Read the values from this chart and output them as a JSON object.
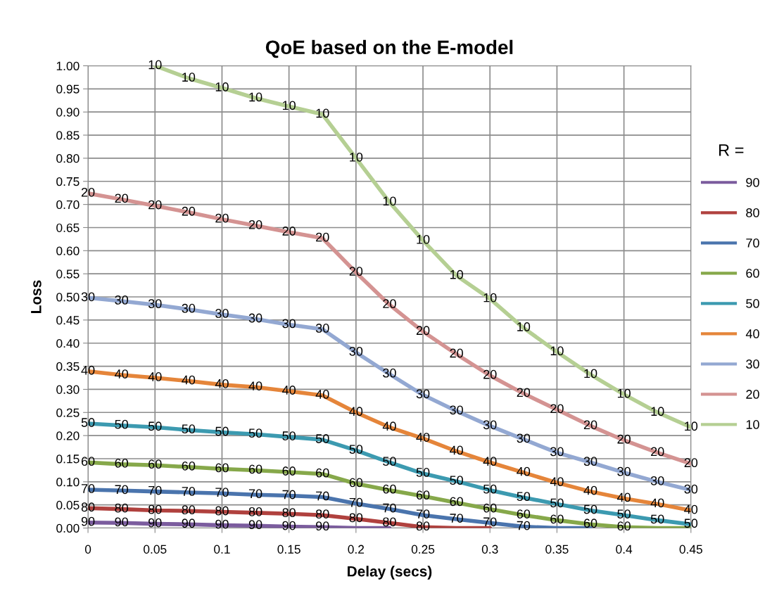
{
  "chart_data": {
    "type": "line",
    "title": "QoE based on the E-model",
    "xlabel": "Delay (secs)",
    "ylabel": "Loss",
    "legend_title": "R =",
    "x": [
      0,
      0.025,
      0.05,
      0.075,
      0.1,
      0.125,
      0.15,
      0.175,
      0.2,
      0.225,
      0.25,
      0.275,
      0.3,
      0.325,
      0.35,
      0.375,
      0.4,
      0.425,
      0.45
    ],
    "xlim": [
      0,
      0.45
    ],
    "xticks": [
      0,
      0.05,
      0.1,
      0.15,
      0.2,
      0.25,
      0.3,
      0.35,
      0.4,
      0.45
    ],
    "ylim": [
      0,
      1.0
    ],
    "yticks": [
      {
        "value": 0,
        "label": "0.00"
      },
      {
        "value": 0.05,
        "label": "0.05"
      },
      {
        "value": 0.1,
        "label": "0.10"
      },
      {
        "value": 0.15,
        "label": "0.15"
      },
      {
        "value": 0.2,
        "label": "0.20"
      },
      {
        "value": 0.25,
        "label": "0.25"
      },
      {
        "value": 0.3,
        "label": "0.30"
      },
      {
        "value": 0.35,
        "label": "0.35"
      },
      {
        "value": 0.4,
        "label": "0.40"
      },
      {
        "value": 0.45,
        "label": "0.45"
      },
      {
        "value": 0.5,
        "label": "0.50"
      },
      {
        "value": 0.55,
        "label": "0.55"
      },
      {
        "value": 0.6,
        "label": "0.60"
      },
      {
        "value": 0.65,
        "label": "0.65"
      },
      {
        "value": 0.7,
        "label": "0.70"
      },
      {
        "value": 0.75,
        "label": "0.75"
      },
      {
        "value": 0.8,
        "label": "0.80"
      },
      {
        "value": 0.85,
        "label": "0.85"
      },
      {
        "value": 0.9,
        "label": "0.90"
      },
      {
        "value": 0.95,
        "label": "0.95"
      },
      {
        "value": 1.0,
        "label": "1.00"
      }
    ],
    "grid": true,
    "legend": "right",
    "marker": "none",
    "line_style": "solid",
    "series": [
      {
        "name": "90",
        "color": "#7b5c9e",
        "values": [
          0.012,
          0.011,
          0.009,
          0.008,
          0.006,
          0.005,
          0.003,
          0.002,
          0,
          0,
          null,
          null,
          null,
          null,
          null,
          null,
          null,
          null,
          null
        ]
      },
      {
        "name": "80",
        "color": "#b0413e",
        "values": [
          0.043,
          0.041,
          0.038,
          0.037,
          0.035,
          0.033,
          0.031,
          0.028,
          0.02,
          0.011,
          0.002,
          0,
          0,
          null,
          null,
          null,
          null,
          null,
          null
        ]
      },
      {
        "name": "70",
        "color": "#4a74ad",
        "values": [
          0.083,
          0.081,
          0.079,
          0.077,
          0.075,
          0.072,
          0.07,
          0.067,
          0.053,
          0.041,
          0.028,
          0.019,
          0.011,
          0.003,
          0,
          0,
          null,
          null,
          null
        ]
      },
      {
        "name": "60",
        "color": "#86a84a",
        "values": [
          0.142,
          0.138,
          0.136,
          0.132,
          0.128,
          0.125,
          0.121,
          0.117,
          0.096,
          0.082,
          0.069,
          0.055,
          0.041,
          0.028,
          0.017,
          0.008,
          0.002,
          0,
          0
        ]
      },
      {
        "name": "50",
        "color": "#3c9ab0",
        "values": [
          0.226,
          0.222,
          0.218,
          0.212,
          0.207,
          0.203,
          0.197,
          0.191,
          0.168,
          0.142,
          0.118,
          0.101,
          0.082,
          0.066,
          0.052,
          0.038,
          0.028,
          0.017,
          0.008
        ]
      },
      {
        "name": "40",
        "color": "#e5853a",
        "values": [
          0.339,
          0.331,
          0.325,
          0.318,
          0.31,
          0.305,
          0.296,
          0.287,
          0.25,
          0.218,
          0.194,
          0.166,
          0.142,
          0.12,
          0.098,
          0.079,
          0.064,
          0.052,
          0.038
        ]
      },
      {
        "name": "30",
        "color": "#93a8d2",
        "values": [
          0.498,
          0.491,
          0.483,
          0.473,
          0.462,
          0.452,
          0.44,
          0.43,
          0.38,
          0.333,
          0.288,
          0.253,
          0.221,
          0.192,
          0.163,
          0.142,
          0.12,
          0.1,
          0.082
        ]
      },
      {
        "name": "20",
        "color": "#d49392",
        "values": [
          0.724,
          0.711,
          0.697,
          0.683,
          0.668,
          0.654,
          0.64,
          0.627,
          0.553,
          0.483,
          0.425,
          0.376,
          0.33,
          0.291,
          0.256,
          0.221,
          0.19,
          0.163,
          0.139
        ]
      },
      {
        "name": "10",
        "color": "#b5cf93",
        "values": [
          null,
          null,
          1.0,
          0.973,
          0.952,
          0.93,
          0.912,
          0.895,
          0.8,
          0.705,
          0.622,
          0.546,
          0.496,
          0.433,
          0.381,
          0.332,
          0.289,
          0.25,
          0.218
        ]
      }
    ],
    "annotations": [
      {
        "text": "90",
        "x": 0,
        "y": 0.012
      },
      {
        "text": "90",
        "x": 0.025,
        "y": 0.011
      },
      {
        "text": "90",
        "x": 0.05,
        "y": 0.009
      },
      {
        "text": "90",
        "x": 0.075,
        "y": 0.008
      },
      {
        "text": "90",
        "x": 0.1,
        "y": 0.006
      },
      {
        "text": "90",
        "x": 0.125,
        "y": 0.005
      },
      {
        "text": "90",
        "x": 0.15,
        "y": 0.003
      },
      {
        "text": "90",
        "x": 0.175,
        "y": 0.002
      },
      {
        "text": "80",
        "x": 0,
        "y": 0.043
      },
      {
        "text": "80",
        "x": 0.025,
        "y": 0.041
      },
      {
        "text": "80",
        "x": 0.05,
        "y": 0.038
      },
      {
        "text": "80",
        "x": 0.075,
        "y": 0.037
      },
      {
        "text": "80",
        "x": 0.1,
        "y": 0.035
      },
      {
        "text": "80",
        "x": 0.125,
        "y": 0.033
      },
      {
        "text": "80",
        "x": 0.15,
        "y": 0.031
      },
      {
        "text": "80",
        "x": 0.175,
        "y": 0.028
      },
      {
        "text": "80",
        "x": 0.2,
        "y": 0.02
      },
      {
        "text": "80",
        "x": 0.225,
        "y": 0.011
      },
      {
        "text": "80",
        "x": 0.25,
        "y": 0.002
      },
      {
        "text": "70",
        "x": 0,
        "y": 0.083
      },
      {
        "text": "70",
        "x": 0.025,
        "y": 0.081
      },
      {
        "text": "70",
        "x": 0.05,
        "y": 0.079
      },
      {
        "text": "70",
        "x": 0.075,
        "y": 0.077
      },
      {
        "text": "70",
        "x": 0.1,
        "y": 0.075
      },
      {
        "text": "70",
        "x": 0.125,
        "y": 0.072
      },
      {
        "text": "70",
        "x": 0.15,
        "y": 0.07
      },
      {
        "text": "70",
        "x": 0.175,
        "y": 0.067
      },
      {
        "text": "70",
        "x": 0.2,
        "y": 0.053
      },
      {
        "text": "70",
        "x": 0.225,
        "y": 0.041
      },
      {
        "text": "70",
        "x": 0.25,
        "y": 0.028
      },
      {
        "text": "70",
        "x": 0.275,
        "y": 0.019
      },
      {
        "text": "70",
        "x": 0.3,
        "y": 0.011
      },
      {
        "text": "70",
        "x": 0.325,
        "y": 0.003
      },
      {
        "text": "60",
        "x": 0,
        "y": 0.142
      },
      {
        "text": "60",
        "x": 0.025,
        "y": 0.138
      },
      {
        "text": "60",
        "x": 0.05,
        "y": 0.136
      },
      {
        "text": "60",
        "x": 0.075,
        "y": 0.132
      },
      {
        "text": "60",
        "x": 0.1,
        "y": 0.128
      },
      {
        "text": "60",
        "x": 0.125,
        "y": 0.125
      },
      {
        "text": "60",
        "x": 0.15,
        "y": 0.121
      },
      {
        "text": "60",
        "x": 0.175,
        "y": 0.117
      },
      {
        "text": "60",
        "x": 0.2,
        "y": 0.096
      },
      {
        "text": "60",
        "x": 0.225,
        "y": 0.082
      },
      {
        "text": "60",
        "x": 0.25,
        "y": 0.069
      },
      {
        "text": "60",
        "x": 0.275,
        "y": 0.055
      },
      {
        "text": "60",
        "x": 0.3,
        "y": 0.041
      },
      {
        "text": "60",
        "x": 0.325,
        "y": 0.028
      },
      {
        "text": "60",
        "x": 0.35,
        "y": 0.017
      },
      {
        "text": "60",
        "x": 0.375,
        "y": 0.008
      },
      {
        "text": "60",
        "x": 0.4,
        "y": 0.002
      },
      {
        "text": "50",
        "x": 0,
        "y": 0.226
      },
      {
        "text": "50",
        "x": 0.025,
        "y": 0.222
      },
      {
        "text": "50",
        "x": 0.05,
        "y": 0.218
      },
      {
        "text": "50",
        "x": 0.075,
        "y": 0.212
      },
      {
        "text": "50",
        "x": 0.1,
        "y": 0.207
      },
      {
        "text": "50",
        "x": 0.125,
        "y": 0.203
      },
      {
        "text": "50",
        "x": 0.15,
        "y": 0.197
      },
      {
        "text": "50",
        "x": 0.175,
        "y": 0.191
      },
      {
        "text": "50",
        "x": 0.2,
        "y": 0.168
      },
      {
        "text": "50",
        "x": 0.225,
        "y": 0.142
      },
      {
        "text": "50",
        "x": 0.25,
        "y": 0.118
      },
      {
        "text": "50",
        "x": 0.275,
        "y": 0.101
      },
      {
        "text": "50",
        "x": 0.3,
        "y": 0.082
      },
      {
        "text": "50",
        "x": 0.325,
        "y": 0.066
      },
      {
        "text": "50",
        "x": 0.35,
        "y": 0.052
      },
      {
        "text": "50",
        "x": 0.375,
        "y": 0.038
      },
      {
        "text": "50",
        "x": 0.4,
        "y": 0.028
      },
      {
        "text": "50",
        "x": 0.425,
        "y": 0.017
      },
      {
        "text": "50",
        "x": 0.45,
        "y": 0.008
      },
      {
        "text": "40",
        "x": 0,
        "y": 0.339
      },
      {
        "text": "40",
        "x": 0.025,
        "y": 0.331
      },
      {
        "text": "40",
        "x": 0.05,
        "y": 0.325
      },
      {
        "text": "40",
        "x": 0.075,
        "y": 0.318
      },
      {
        "text": "40",
        "x": 0.1,
        "y": 0.31
      },
      {
        "text": "40",
        "x": 0.125,
        "y": 0.305
      },
      {
        "text": "40",
        "x": 0.15,
        "y": 0.296
      },
      {
        "text": "40",
        "x": 0.175,
        "y": 0.287
      },
      {
        "text": "40",
        "x": 0.2,
        "y": 0.25
      },
      {
        "text": "40",
        "x": 0.225,
        "y": 0.218
      },
      {
        "text": "40",
        "x": 0.25,
        "y": 0.194
      },
      {
        "text": "40",
        "x": 0.275,
        "y": 0.166
      },
      {
        "text": "40",
        "x": 0.3,
        "y": 0.142
      },
      {
        "text": "40",
        "x": 0.325,
        "y": 0.12
      },
      {
        "text": "40",
        "x": 0.35,
        "y": 0.098
      },
      {
        "text": "40",
        "x": 0.375,
        "y": 0.079
      },
      {
        "text": "40",
        "x": 0.4,
        "y": 0.064
      },
      {
        "text": "40",
        "x": 0.425,
        "y": 0.052
      },
      {
        "text": "40",
        "x": 0.45,
        "y": 0.038
      },
      {
        "text": "30",
        "x": 0,
        "y": 0.498
      },
      {
        "text": "30",
        "x": 0.025,
        "y": 0.491
      },
      {
        "text": "30",
        "x": 0.05,
        "y": 0.483
      },
      {
        "text": "30",
        "x": 0.075,
        "y": 0.473
      },
      {
        "text": "30",
        "x": 0.1,
        "y": 0.462
      },
      {
        "text": "30",
        "x": 0.125,
        "y": 0.452
      },
      {
        "text": "30",
        "x": 0.15,
        "y": 0.44
      },
      {
        "text": "30",
        "x": 0.175,
        "y": 0.43
      },
      {
        "text": "30",
        "x": 0.2,
        "y": 0.38
      },
      {
        "text": "30",
        "x": 0.225,
        "y": 0.333
      },
      {
        "text": "30",
        "x": 0.25,
        "y": 0.288
      },
      {
        "text": "30",
        "x": 0.275,
        "y": 0.253
      },
      {
        "text": "30",
        "x": 0.3,
        "y": 0.221
      },
      {
        "text": "30",
        "x": 0.325,
        "y": 0.192
      },
      {
        "text": "30",
        "x": 0.35,
        "y": 0.163
      },
      {
        "text": "30",
        "x": 0.375,
        "y": 0.142
      },
      {
        "text": "30",
        "x": 0.4,
        "y": 0.12
      },
      {
        "text": "30",
        "x": 0.425,
        "y": 0.1
      },
      {
        "text": "30",
        "x": 0.45,
        "y": 0.082
      },
      {
        "text": "20",
        "x": 0,
        "y": 0.724
      },
      {
        "text": "20",
        "x": 0.025,
        "y": 0.711
      },
      {
        "text": "20",
        "x": 0.05,
        "y": 0.697
      },
      {
        "text": "20",
        "x": 0.075,
        "y": 0.683
      },
      {
        "text": "20",
        "x": 0.1,
        "y": 0.668
      },
      {
        "text": "20",
        "x": 0.125,
        "y": 0.654
      },
      {
        "text": "20",
        "x": 0.15,
        "y": 0.64
      },
      {
        "text": "20",
        "x": 0.175,
        "y": 0.627
      },
      {
        "text": "20",
        "x": 0.2,
        "y": 0.553
      },
      {
        "text": "20",
        "x": 0.225,
        "y": 0.483
      },
      {
        "text": "20",
        "x": 0.25,
        "y": 0.425
      },
      {
        "text": "20",
        "x": 0.275,
        "y": 0.376
      },
      {
        "text": "20",
        "x": 0.3,
        "y": 0.33
      },
      {
        "text": "20",
        "x": 0.325,
        "y": 0.291
      },
      {
        "text": "20",
        "x": 0.35,
        "y": 0.256
      },
      {
        "text": "20",
        "x": 0.375,
        "y": 0.221
      },
      {
        "text": "20",
        "x": 0.4,
        "y": 0.19
      },
      {
        "text": "20",
        "x": 0.425,
        "y": 0.163
      },
      {
        "text": "20",
        "x": 0.45,
        "y": 0.139
      },
      {
        "text": "10",
        "x": 0.05,
        "y": 1.0
      },
      {
        "text": "10",
        "x": 0.075,
        "y": 0.973
      },
      {
        "text": "10",
        "x": 0.1,
        "y": 0.952
      },
      {
        "text": "10",
        "x": 0.125,
        "y": 0.93
      },
      {
        "text": "10",
        "x": 0.15,
        "y": 0.912
      },
      {
        "text": "10",
        "x": 0.175,
        "y": 0.895
      },
      {
        "text": "10",
        "x": 0.2,
        "y": 0.8
      },
      {
        "text": "10",
        "x": 0.225,
        "y": 0.705
      },
      {
        "text": "10",
        "x": 0.25,
        "y": 0.622
      },
      {
        "text": "10",
        "x": 0.275,
        "y": 0.546
      },
      {
        "text": "10",
        "x": 0.3,
        "y": 0.496
      },
      {
        "text": "10",
        "x": 0.325,
        "y": 0.433
      },
      {
        "text": "10",
        "x": 0.35,
        "y": 0.381
      },
      {
        "text": "10",
        "x": 0.375,
        "y": 0.332
      },
      {
        "text": "10",
        "x": 0.4,
        "y": 0.289
      },
      {
        "text": "10",
        "x": 0.425,
        "y": 0.25
      },
      {
        "text": "10",
        "x": 0.45,
        "y": 0.218
      }
    ]
  }
}
